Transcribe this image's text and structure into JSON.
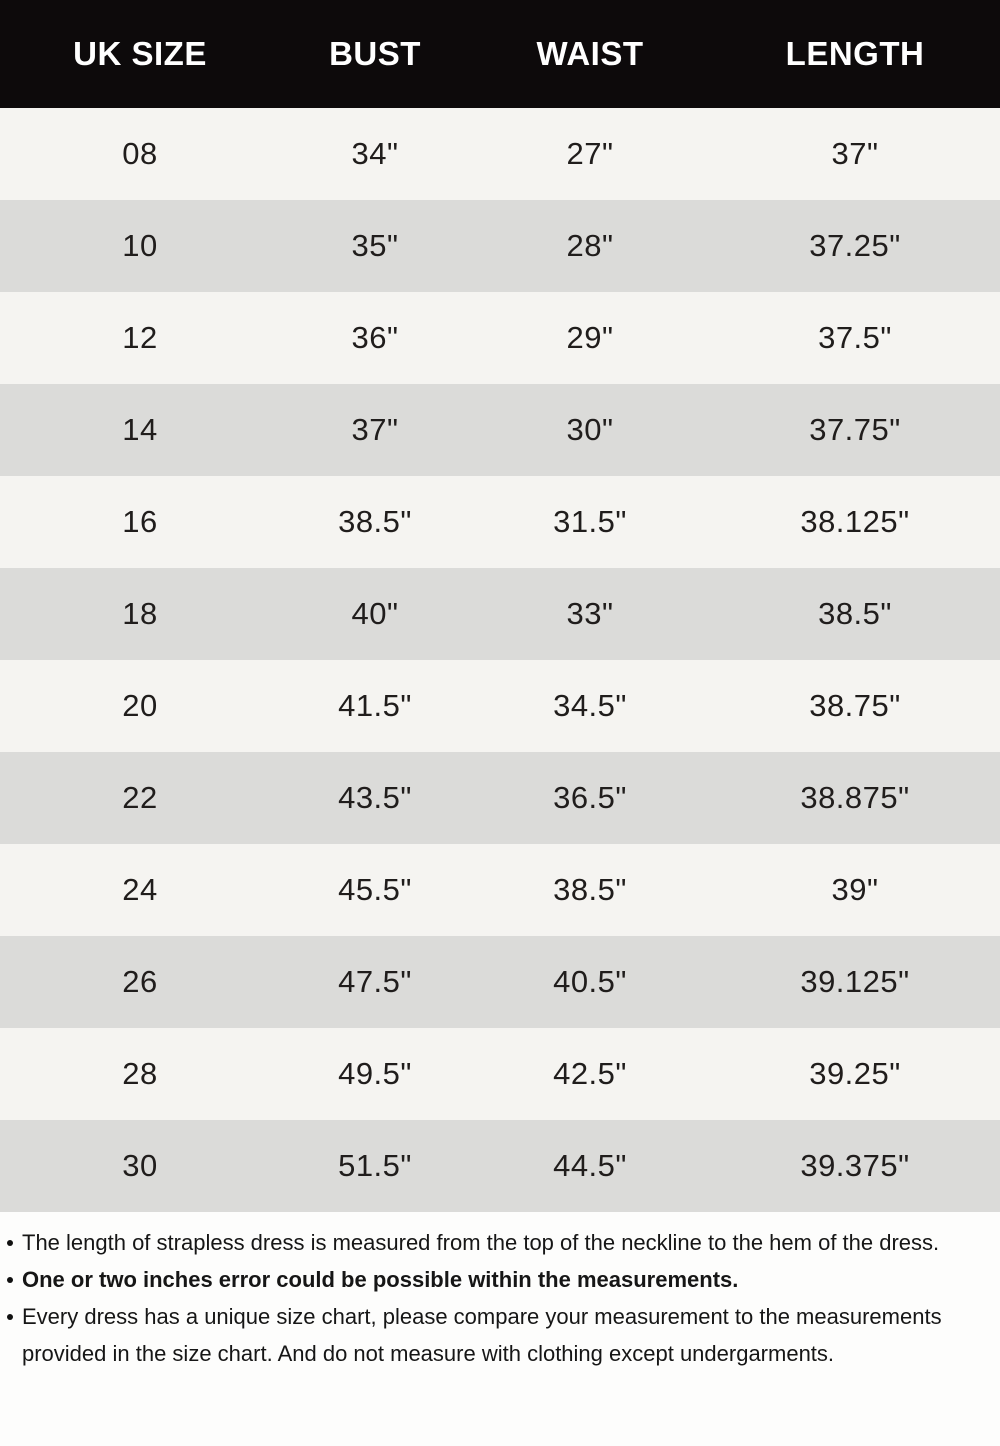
{
  "chart_data": {
    "type": "table",
    "columns": [
      "UK SIZE",
      "BUST",
      "WAIST",
      "LENGTH"
    ],
    "rows": [
      [
        "08",
        "34\"",
        "27\"",
        "37\""
      ],
      [
        "10",
        "35\"",
        "28\"",
        "37.25\""
      ],
      [
        "12",
        "36\"",
        "29\"",
        "37.5\""
      ],
      [
        "14",
        "37\"",
        "30\"",
        "37.75\""
      ],
      [
        "16",
        "38.5\"",
        "31.5\"",
        "38.125\""
      ],
      [
        "18",
        "40\"",
        "33\"",
        "38.5\""
      ],
      [
        "20",
        "41.5\"",
        "34.5\"",
        "38.75\""
      ],
      [
        "22",
        "43.5\"",
        "36.5\"",
        "38.875\""
      ],
      [
        "24",
        "45.5\"",
        "38.5\"",
        "39\""
      ],
      [
        "26",
        "47.5\"",
        "40.5\"",
        "39.125\""
      ],
      [
        "28",
        "49.5\"",
        "42.5\"",
        "39.25\""
      ],
      [
        "30",
        "51.5\"",
        "44.5\"",
        "39.375\""
      ]
    ],
    "layout": {
      "header_style": "black bar, white bold text",
      "row_striping": "odd rows off-white, even rows gray"
    }
  },
  "notes": {
    "items": [
      {
        "text": "The length of strapless dress is measured from the top of the neckline to the hem of the dress.",
        "bold": false
      },
      {
        "text": "One or two inches error could be possible within the measurements.",
        "bold": true
      },
      {
        "text": "Every dress has a unique size chart, please compare your measurement to the measurements provided in the size chart. And do not measure with clothing except undergarments.",
        "bold": false
      }
    ]
  },
  "colors": {
    "header_bg": "#0d0a0b",
    "header_text": "#ffffff",
    "row_light": "#f5f4f1",
    "row_dark": "#dbdbd9",
    "note_text": "#161616",
    "footer_bg": "#fdfdfc"
  }
}
